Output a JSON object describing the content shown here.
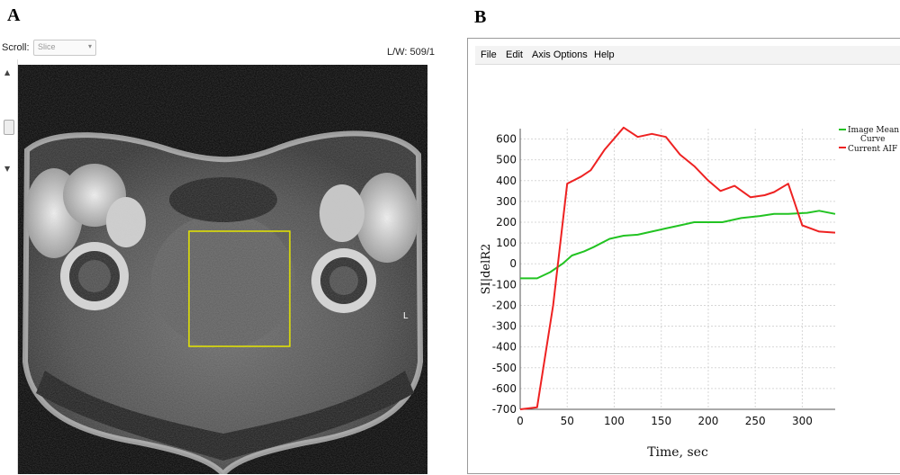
{
  "figure": {
    "label_a": "A",
    "label_b": "B"
  },
  "viewer": {
    "scroll_label": "Scroll:",
    "slice_select": "Slice",
    "lw_readout": "L/W: 509/1",
    "roi_marker": "L"
  },
  "plot_window": {
    "menu": [
      "File",
      "Edit",
      "Axis Options",
      "Help"
    ]
  },
  "chart_data": {
    "type": "line",
    "ylabel": "SI|delR2",
    "xlabel": "Time, sec",
    "xlim": [
      0,
      335
    ],
    "ylim": [
      -700,
      650
    ],
    "xticks": [
      0,
      50,
      100,
      150,
      200,
      250,
      300
    ],
    "yticks": [
      600,
      500,
      400,
      300,
      200,
      100,
      0,
      -100,
      -200,
      -300,
      -400,
      -500,
      -600,
      -700
    ],
    "grid": true,
    "legend_position": "right",
    "series": [
      {
        "name": "Image Mean Curve",
        "color": "#22c322",
        "points": [
          [
            0,
            -70
          ],
          [
            18,
            -70
          ],
          [
            32,
            -40
          ],
          [
            45,
            0
          ],
          [
            55,
            40
          ],
          [
            68,
            60
          ],
          [
            78,
            80
          ],
          [
            95,
            120
          ],
          [
            110,
            135
          ],
          [
            125,
            140
          ],
          [
            140,
            155
          ],
          [
            155,
            170
          ],
          [
            170,
            185
          ],
          [
            185,
            200
          ],
          [
            200,
            200
          ],
          [
            215,
            200
          ],
          [
            235,
            220
          ],
          [
            255,
            230
          ],
          [
            270,
            240
          ],
          [
            285,
            240
          ],
          [
            305,
            245
          ],
          [
            318,
            255
          ],
          [
            335,
            240
          ]
        ]
      },
      {
        "name": "Current AIF",
        "color": "#ee2222",
        "points": [
          [
            0,
            -700
          ],
          [
            18,
            -690
          ],
          [
            35,
            -200
          ],
          [
            50,
            385
          ],
          [
            65,
            420
          ],
          [
            75,
            450
          ],
          [
            90,
            550
          ],
          [
            110,
            655
          ],
          [
            125,
            610
          ],
          [
            140,
            625
          ],
          [
            155,
            610
          ],
          [
            170,
            525
          ],
          [
            185,
            470
          ],
          [
            200,
            400
          ],
          [
            213,
            350
          ],
          [
            228,
            375
          ],
          [
            245,
            320
          ],
          [
            260,
            330
          ],
          [
            270,
            345
          ],
          [
            285,
            385
          ],
          [
            300,
            185
          ],
          [
            318,
            155
          ],
          [
            335,
            150
          ]
        ]
      }
    ]
  }
}
